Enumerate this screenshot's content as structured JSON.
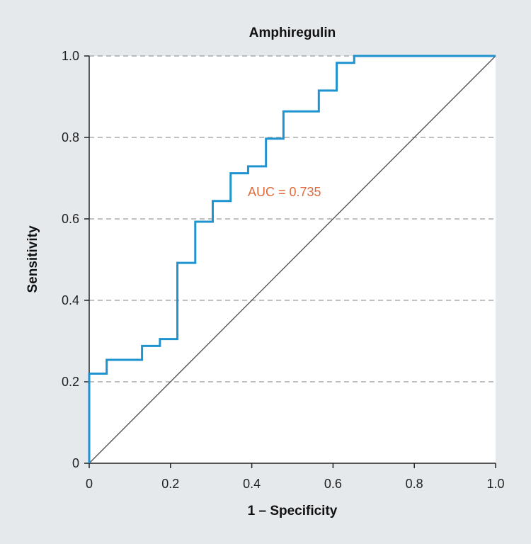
{
  "colors": {
    "background": "#e6e9ec",
    "plot_background": "#ffffff",
    "roc_line": "#1f93cf",
    "diagonal": "#555555",
    "grid": "#9a9a9a",
    "annotation": "#e06a3b"
  },
  "chart_data": {
    "type": "line",
    "title": "Amphiregulin",
    "xlabel": "1 – Specificity",
    "ylabel": "Sensitivity",
    "xlim": [
      0,
      1
    ],
    "ylim": [
      0,
      1
    ],
    "x_ticks": [
      0,
      0.2,
      0.4,
      0.6,
      0.8,
      1.0
    ],
    "x_tick_labels": [
      "0",
      "0.2",
      "0.4",
      "0.6",
      "0.8",
      "1.0"
    ],
    "y_ticks": [
      0,
      0.2,
      0.4,
      0.6,
      0.8,
      1.0
    ],
    "y_tick_labels": [
      "0",
      "0.2",
      "0.4",
      "0.6",
      "0.8",
      "1.0"
    ],
    "grid": "horizontal dashed",
    "annotation": "AUC = 0.735",
    "series": [
      {
        "name": "ROC curve",
        "x": [
          0,
          0,
          0.043,
          0.043,
          0.13,
          0.13,
          0.174,
          0.174,
          0.217,
          0.217,
          0.261,
          0.261,
          0.304,
          0.304,
          0.348,
          0.348,
          0.391,
          0.391,
          0.435,
          0.435,
          0.478,
          0.478,
          0.565,
          0.565,
          0.609,
          0.609,
          0.652,
          0.652,
          1.0
        ],
        "y": [
          0,
          0.22,
          0.22,
          0.254,
          0.254,
          0.288,
          0.288,
          0.305,
          0.305,
          0.492,
          0.492,
          0.593,
          0.593,
          0.644,
          0.644,
          0.712,
          0.712,
          0.729,
          0.729,
          0.797,
          0.797,
          0.864,
          0.864,
          0.915,
          0.915,
          0.983,
          0.983,
          1.0,
          1.0
        ]
      },
      {
        "name": "Reference line",
        "x": [
          0,
          1
        ],
        "y": [
          0,
          1
        ]
      }
    ]
  }
}
